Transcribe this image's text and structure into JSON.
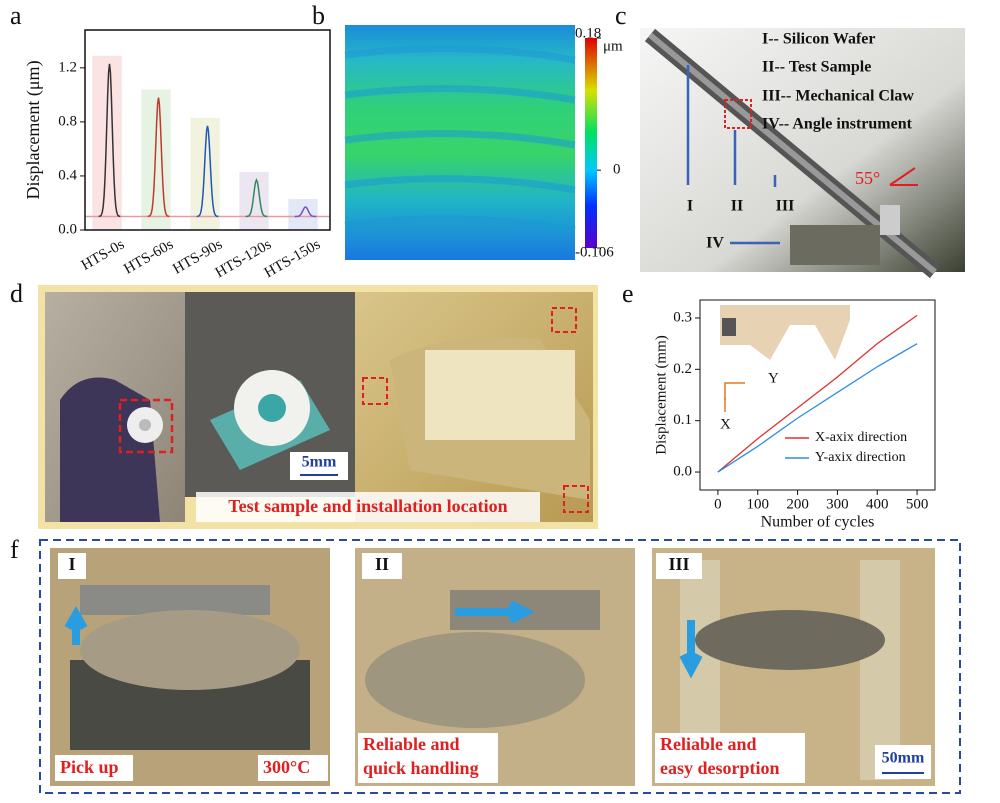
{
  "panel_labels": [
    "a",
    "b",
    "c",
    "d",
    "e",
    "f"
  ],
  "chart_data": [
    {
      "type": "peaks",
      "y_label": "Displacement (μm)",
      "categories": [
        "HTS-0s",
        "HTS-60s",
        "HTS-90s",
        "HTS-120s",
        "HTS-150s"
      ],
      "values": [
        1.23,
        0.98,
        0.77,
        0.37,
        0.17
      ],
      "colors": [
        "#333333",
        "#c0392b",
        "#2155b8",
        "#2e8b57",
        "#7b4fc9"
      ],
      "shades": [
        "#fbe3e3",
        "#e6f3e3",
        "#f1f3de",
        "#ece6f3",
        "#e3e8f6"
      ],
      "baseline": 0.1,
      "baseline_color": "#e79aa5",
      "ylim": [
        0,
        1.48
      ],
      "yticks": [
        {
          "value": 0,
          "label": "0.0"
        },
        0.4,
        0.8,
        1.2
      ]
    },
    {
      "type": "line",
      "x_label": "Number of cycles",
      "y_label": "Displacement (mm)",
      "x": [
        0,
        100,
        200,
        300,
        400,
        500
      ],
      "series": [
        {
          "name": "X-axix direction",
          "color": "#e03030",
          "values": [
            0,
            0.065,
            0.125,
            0.185,
            0.25,
            0.305
          ]
        },
        {
          "name": "Y-axix direction",
          "color": "#2a8de8",
          "values": [
            0,
            0.05,
            0.105,
            0.155,
            0.205,
            0.25
          ]
        }
      ],
      "xlim": [
        -45,
        545
      ],
      "xticks": [
        0,
        100,
        200,
        300,
        400,
        500
      ],
      "ylim": [
        -0.035,
        0.335
      ],
      "yticks": [
        {
          "value": 0,
          "label": "0.0"
        },
        0.1,
        0.2,
        0.3
      ],
      "legend": "lower right",
      "inset_axes": [
        "Y",
        "X"
      ]
    }
  ],
  "panel_b": {
    "clim": [
      -0.106,
      0.18
    ],
    "ticks": [
      0.18,
      0,
      -0.106
    ],
    "unit": "μm"
  },
  "panel_c": {
    "legend": [
      "I-- Silicon Wafer",
      "II-- Test Sample",
      "III-- Mechanical Claw",
      "IV-- Angle instrument"
    ],
    "markers": [
      "I",
      "II",
      "III",
      "IV"
    ],
    "angle": "55°"
  },
  "panel_d": {
    "scale": "5mm",
    "caption": "Test sample and installation location"
  },
  "panel_f": {
    "steps": [
      {
        "label": "I",
        "caption": [
          "Pick up"
        ],
        "note": "300°C"
      },
      {
        "label": "II",
        "caption": [
          "Reliable and",
          "quick handling"
        ]
      },
      {
        "label": "III",
        "caption": [
          "Reliable and",
          "easy desorption"
        ],
        "scale": "50mm"
      }
    ]
  }
}
